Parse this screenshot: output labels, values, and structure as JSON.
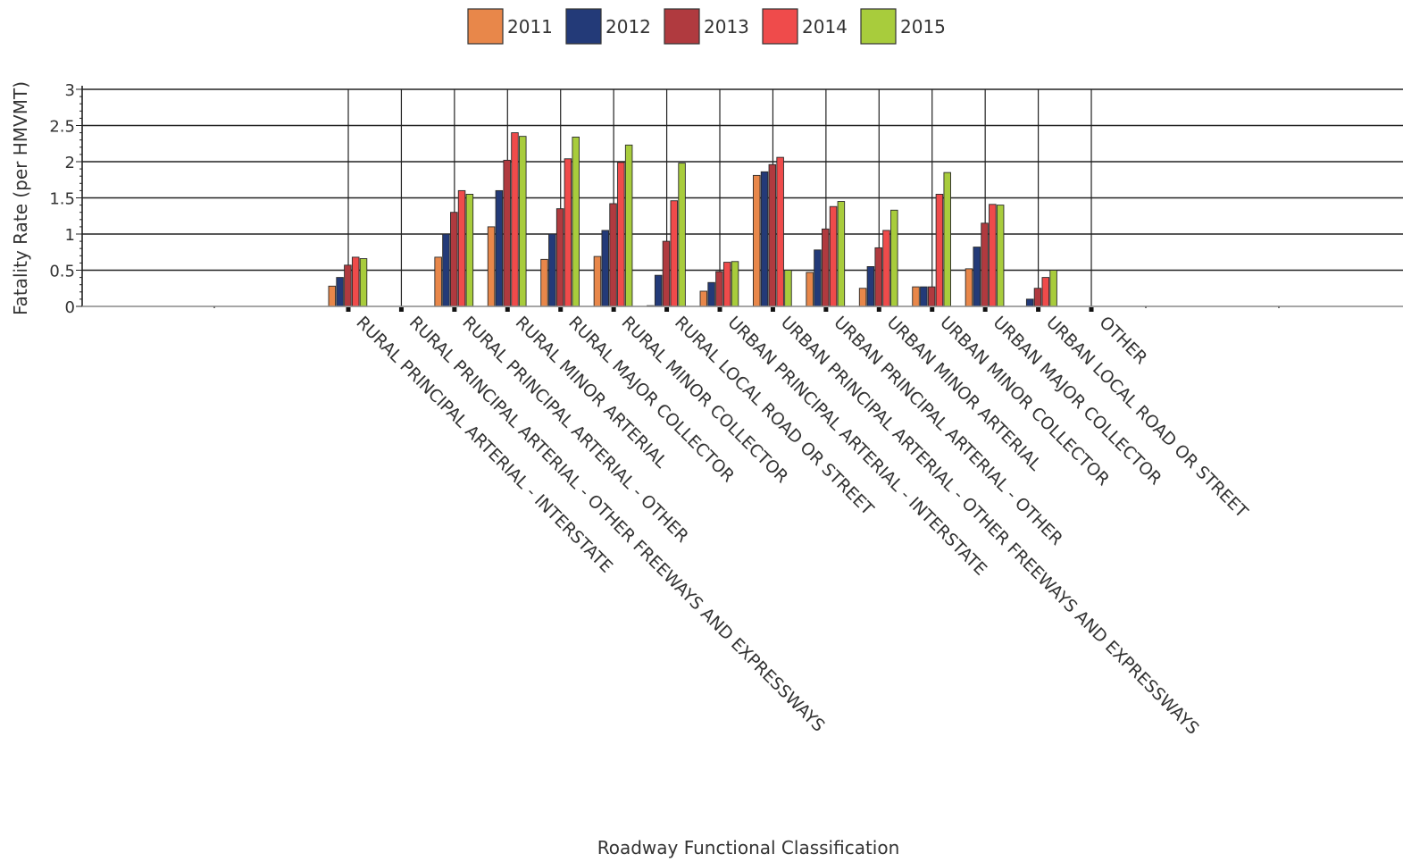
{
  "chart_data": {
    "type": "bar",
    "title": "",
    "xlabel": "Roadway Functional Classification",
    "ylabel": "Fatality Rate (per HMVMT)",
    "ylim": [
      0,
      3
    ],
    "yticks": [
      "0",
      "0.5",
      "1",
      "1.5",
      "2",
      "2.5",
      "3"
    ],
    "grid": true,
    "legend_position": "top-center",
    "categories": [
      "RURAL PRINCIPAL ARTERIAL - INTERSTATE",
      "RURAL PRINCIPAL ARTERIAL - OTHER FREEWAYS AND EXPRESSWAYS",
      "RURAL PRINCIPAL ARTERIAL - OTHER",
      "RURAL MINOR ARTERIAL",
      "RURAL MAJOR COLLECTOR",
      "RURAL MINOR COLLECTOR",
      "RURAL LOCAL ROAD OR STREET",
      "URBAN PRINCIPAL ARTERIAL - INTERSTATE",
      "URBAN PRINCIPAL ARTERIAL - OTHER FREEWAYS AND EXPRESSWAYS",
      "URBAN PRINCIPAL ARTERIAL - OTHER",
      "URBAN MINOR ARTERIAL",
      "URBAN MINOR COLLECTOR",
      "URBAN MAJOR COLLECTOR",
      "URBAN LOCAL ROAD OR STREET",
      "OTHER"
    ],
    "series": [
      {
        "name": "2011",
        "color": "#E8874A",
        "values": [
          0.28,
          0,
          0.68,
          1.1,
          0.65,
          0.69,
          0.01,
          0.21,
          1.81,
          0.47,
          0.25,
          0.27,
          0.52,
          0,
          0
        ]
      },
      {
        "name": "2012",
        "color": "#233A78",
        "values": [
          0.4,
          0,
          1.0,
          1.6,
          1.0,
          1.05,
          0.43,
          0.33,
          1.86,
          0.78,
          0.55,
          0.27,
          0.82,
          0.1,
          0
        ]
      },
      {
        "name": "2013",
        "color": "#B03A3F",
        "values": [
          0.57,
          0,
          1.3,
          2.02,
          1.35,
          1.42,
          0.9,
          0.48,
          1.96,
          1.07,
          0.81,
          0.27,
          1.15,
          0.25,
          0
        ]
      },
      {
        "name": "2014",
        "color": "#EF4B4B",
        "values": [
          0.68,
          0,
          1.6,
          2.4,
          2.04,
          1.99,
          1.46,
          0.61,
          2.06,
          1.38,
          1.05,
          1.55,
          1.41,
          0.4,
          0
        ]
      },
      {
        "name": "2015",
        "color": "#A8CC3C",
        "values": [
          0.66,
          0,
          1.55,
          2.35,
          2.34,
          2.23,
          1.98,
          0.62,
          0.5,
          1.45,
          1.33,
          1.85,
          1.4,
          0.5,
          0
        ]
      }
    ]
  }
}
